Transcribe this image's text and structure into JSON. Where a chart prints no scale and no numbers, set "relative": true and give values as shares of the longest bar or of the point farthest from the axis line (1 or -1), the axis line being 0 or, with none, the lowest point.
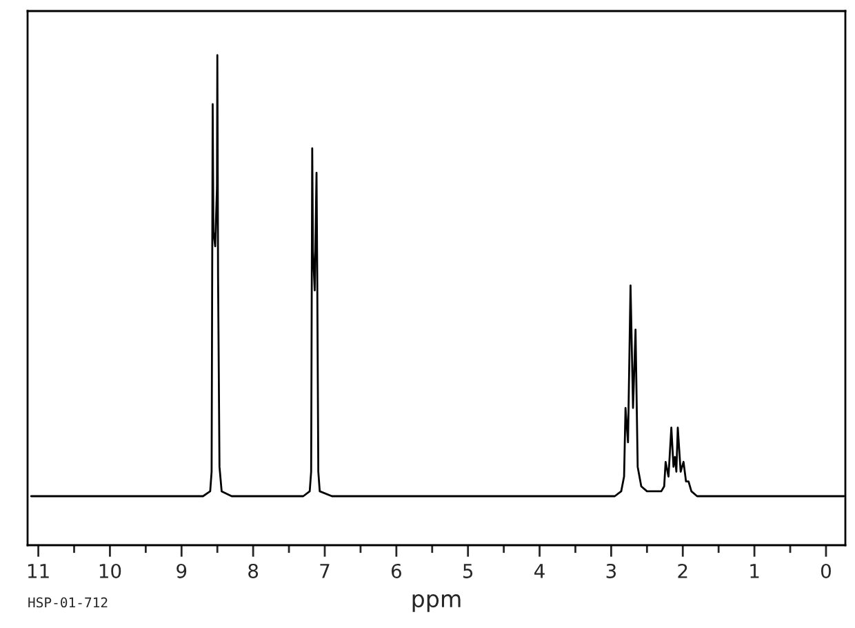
{
  "chart_data": {
    "type": "line",
    "relative": true,
    "xlabel": "ppm",
    "tick_labels": "x",
    "grid": false,
    "legend": false,
    "marker": "none",
    "line_style": "solid",
    "annotations": [
      "HSP-01-712"
    ],
    "xlim": [
      11.15,
      -0.27
    ],
    "xticks": [
      11,
      {
        "value": 10.5,
        "label": null
      },
      10,
      {
        "value": 9.5,
        "label": null
      },
      9,
      {
        "value": 8.5,
        "label": null
      },
      8,
      {
        "value": 7.5,
        "label": null
      },
      7,
      {
        "value": 6.5,
        "label": null
      },
      6,
      {
        "value": 5.5,
        "label": null
      },
      5,
      {
        "value": 4.5,
        "label": null
      },
      4,
      {
        "value": 3.5,
        "label": null
      },
      3,
      {
        "value": 2.5,
        "label": null
      },
      2,
      {
        "value": 1.5,
        "label": null
      },
      1,
      {
        "value": 0.5,
        "label": null
      },
      0
    ],
    "series": [
      {
        "color": "#000000",
        "x": [
          11.1,
          8.7,
          8.6,
          8.58,
          8.565,
          8.555,
          8.53,
          8.505,
          8.5,
          8.49,
          8.47,
          8.44,
          8.3,
          7.3,
          7.21,
          7.19,
          7.175,
          7.165,
          7.14,
          7.115,
          7.105,
          7.09,
          7.07,
          6.9,
          2.95,
          2.86,
          2.82,
          2.8,
          2.765,
          2.73,
          2.695,
          2.66,
          2.63,
          2.58,
          2.5,
          2.3,
          2.26,
          2.24,
          2.2,
          2.16,
          2.13,
          2.11,
          2.09,
          2.07,
          2.03,
          1.99,
          1.955,
          1.92,
          1.88,
          1.8,
          -0.25
        ],
        "values": [
          0.1,
          0.1,
          0.11,
          0.15,
          0.9,
          0.64,
          0.61,
          0.73,
          1.0,
          0.55,
          0.16,
          0.11,
          0.1,
          0.1,
          0.11,
          0.15,
          0.81,
          0.6,
          0.52,
          0.76,
          0.55,
          0.15,
          0.11,
          0.1,
          0.1,
          0.11,
          0.14,
          0.28,
          0.21,
          0.53,
          0.28,
          0.44,
          0.16,
          0.12,
          0.11,
          0.11,
          0.12,
          0.17,
          0.14,
          0.24,
          0.16,
          0.18,
          0.15,
          0.24,
          0.15,
          0.17,
          0.13,
          0.13,
          0.11,
          0.1,
          0.1
        ]
      }
    ]
  }
}
